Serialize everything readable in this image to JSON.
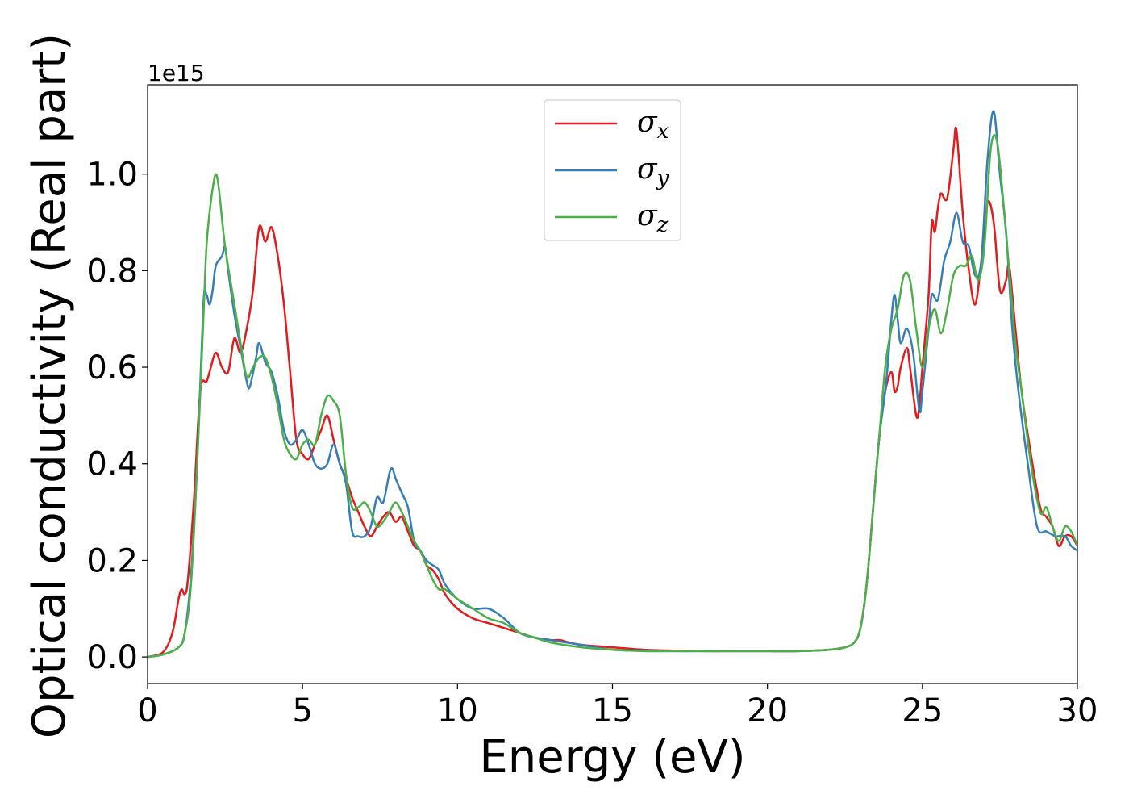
{
  "chart_data": {
    "type": "line",
    "xlabel": "Energy (eV)",
    "ylabel": "Optical conductivity (Real part)",
    "y_offset_text": "1e15",
    "xlim": [
      0,
      30
    ],
    "ylim": [
      -0.055,
      1.185
    ],
    "y_scale_note": "values in units of 1e15",
    "x_ticks": [
      0,
      5,
      10,
      15,
      20,
      25,
      30
    ],
    "x_tick_labels": [
      "0",
      "5",
      "10",
      "15",
      "20",
      "25",
      "30"
    ],
    "y_ticks": [
      0.0,
      0.2,
      0.4,
      0.6,
      0.8,
      1.0
    ],
    "y_tick_labels": [
      "0.0",
      "0.2",
      "0.4",
      "0.6",
      "0.8",
      "1.0"
    ],
    "grid": false,
    "legend_position": "top-center",
    "series": [
      {
        "name": "σx",
        "legend_base": "σ",
        "legend_sub": "x",
        "color": "#e41a1c",
        "x": [
          0,
          0.5,
          0.8,
          1.0,
          1.1,
          1.2,
          1.3,
          1.5,
          1.7,
          1.9,
          2.0,
          2.2,
          2.4,
          2.6,
          2.8,
          3.0,
          3.2,
          3.4,
          3.6,
          3.8,
          4.0,
          4.2,
          4.4,
          4.6,
          4.8,
          5.0,
          5.2,
          5.4,
          5.6,
          5.8,
          6.0,
          6.2,
          6.4,
          6.6,
          6.8,
          7.0,
          7.2,
          7.4,
          7.6,
          7.8,
          8.0,
          8.2,
          8.4,
          8.6,
          8.8,
          9.0,
          9.2,
          9.4,
          9.6,
          10.0,
          10.5,
          11.0,
          11.5,
          12.0,
          12.5,
          13.0,
          13.3,
          13.6,
          14.0,
          15.0,
          16.0,
          17.0,
          18.0,
          19.0,
          20.0,
          21.0,
          22.0,
          22.5,
          22.8,
          23.0,
          23.2,
          23.4,
          23.6,
          23.8,
          24.0,
          24.1,
          24.2,
          24.3,
          24.5,
          24.6,
          24.8,
          24.9,
          25.0,
          25.2,
          25.3,
          25.4,
          25.5,
          25.6,
          25.8,
          26.0,
          26.1,
          26.3,
          26.5,
          26.7,
          26.9,
          27.1,
          27.3,
          27.5,
          27.7,
          27.8,
          28.0,
          28.2,
          28.5,
          28.8,
          29.0,
          29.2,
          29.4,
          29.6,
          29.8,
          30.0
        ],
        "values": [
          0.0,
          0.01,
          0.05,
          0.12,
          0.14,
          0.13,
          0.16,
          0.33,
          0.55,
          0.57,
          0.59,
          0.63,
          0.6,
          0.59,
          0.66,
          0.63,
          0.68,
          0.76,
          0.89,
          0.86,
          0.89,
          0.83,
          0.73,
          0.59,
          0.45,
          0.42,
          0.41,
          0.44,
          0.47,
          0.5,
          0.45,
          0.4,
          0.37,
          0.33,
          0.3,
          0.27,
          0.25,
          0.27,
          0.29,
          0.3,
          0.28,
          0.29,
          0.26,
          0.23,
          0.22,
          0.19,
          0.18,
          0.16,
          0.13,
          0.1,
          0.08,
          0.07,
          0.06,
          0.05,
          0.04,
          0.035,
          0.035,
          0.03,
          0.025,
          0.02,
          0.015,
          0.013,
          0.012,
          0.012,
          0.012,
          0.012,
          0.015,
          0.02,
          0.03,
          0.06,
          0.15,
          0.3,
          0.45,
          0.55,
          0.59,
          0.55,
          0.56,
          0.6,
          0.64,
          0.6,
          0.5,
          0.52,
          0.6,
          0.75,
          0.9,
          0.88,
          0.93,
          0.96,
          0.95,
          1.05,
          1.09,
          0.92,
          0.8,
          0.73,
          0.82,
          0.94,
          0.9,
          0.76,
          0.78,
          0.81,
          0.68,
          0.55,
          0.42,
          0.31,
          0.29,
          0.27,
          0.23,
          0.25,
          0.25,
          0.23
        ]
      },
      {
        "name": "σy",
        "legend_base": "σ",
        "legend_sub": "y",
        "color": "#377eb8",
        "x": [
          0,
          0.5,
          1.0,
          1.2,
          1.4,
          1.6,
          1.8,
          1.9,
          2.0,
          2.1,
          2.2,
          2.4,
          2.5,
          2.6,
          2.8,
          3.0,
          3.2,
          3.3,
          3.5,
          3.6,
          3.8,
          4.0,
          4.2,
          4.4,
          4.6,
          4.8,
          5.0,
          5.2,
          5.4,
          5.6,
          5.8,
          6.0,
          6.2,
          6.4,
          6.6,
          6.8,
          7.0,
          7.2,
          7.4,
          7.6,
          7.8,
          7.9,
          8.0,
          8.2,
          8.4,
          8.6,
          8.8,
          9.0,
          9.2,
          9.4,
          9.6,
          10.0,
          10.5,
          11.0,
          11.5,
          12.0,
          12.5,
          13.0,
          14.0,
          15.0,
          16.0,
          17.0,
          18.0,
          19.0,
          20.0,
          21.0,
          22.0,
          22.5,
          22.8,
          23.0,
          23.2,
          23.4,
          23.6,
          23.8,
          23.9,
          24.0,
          24.1,
          24.2,
          24.3,
          24.5,
          24.7,
          24.9,
          25.0,
          25.2,
          25.3,
          25.5,
          25.7,
          25.9,
          26.1,
          26.3,
          26.5,
          26.7,
          26.9,
          27.1,
          27.3,
          27.5,
          27.7,
          27.9,
          28.1,
          28.4,
          28.7,
          29.0,
          29.3,
          29.6,
          29.8,
          30.0
        ],
        "values": [
          0.0,
          0.005,
          0.02,
          0.05,
          0.17,
          0.4,
          0.73,
          0.75,
          0.73,
          0.76,
          0.81,
          0.83,
          0.85,
          0.8,
          0.71,
          0.64,
          0.57,
          0.56,
          0.62,
          0.65,
          0.61,
          0.59,
          0.54,
          0.47,
          0.44,
          0.45,
          0.47,
          0.44,
          0.4,
          0.39,
          0.4,
          0.44,
          0.4,
          0.36,
          0.26,
          0.25,
          0.25,
          0.27,
          0.33,
          0.32,
          0.38,
          0.39,
          0.37,
          0.34,
          0.31,
          0.24,
          0.22,
          0.2,
          0.19,
          0.18,
          0.15,
          0.12,
          0.1,
          0.1,
          0.08,
          0.05,
          0.04,
          0.035,
          0.025,
          0.015,
          0.013,
          0.012,
          0.012,
          0.012,
          0.012,
          0.012,
          0.015,
          0.02,
          0.03,
          0.06,
          0.15,
          0.3,
          0.45,
          0.55,
          0.62,
          0.7,
          0.75,
          0.7,
          0.65,
          0.68,
          0.63,
          0.51,
          0.55,
          0.68,
          0.75,
          0.74,
          0.82,
          0.86,
          0.92,
          0.86,
          0.85,
          0.79,
          0.82,
          1.03,
          1.13,
          1.0,
          0.88,
          0.68,
          0.55,
          0.4,
          0.27,
          0.26,
          0.25,
          0.25,
          0.23,
          0.22
        ]
      },
      {
        "name": "σz",
        "legend_base": "σ",
        "legend_sub": "z",
        "color": "#4daf4a",
        "x": [
          0,
          0.5,
          1.0,
          1.2,
          1.4,
          1.6,
          1.8,
          1.9,
          2.0,
          2.1,
          2.2,
          2.3,
          2.5,
          2.8,
          3.0,
          3.2,
          3.4,
          3.6,
          3.8,
          4.0,
          4.2,
          4.4,
          4.6,
          4.8,
          5.0,
          5.2,
          5.4,
          5.6,
          5.8,
          6.0,
          6.2,
          6.4,
          6.6,
          6.8,
          7.0,
          7.2,
          7.4,
          7.6,
          7.8,
          8.0,
          8.2,
          8.4,
          8.6,
          8.8,
          9.0,
          9.2,
          9.4,
          9.6,
          10.0,
          10.5,
          11.0,
          11.5,
          12.0,
          12.5,
          13.0,
          14.0,
          15.0,
          16.0,
          17.0,
          18.0,
          19.0,
          20.0,
          21.0,
          22.0,
          22.5,
          22.8,
          23.0,
          23.2,
          23.4,
          23.6,
          23.8,
          24.0,
          24.2,
          24.4,
          24.6,
          24.8,
          25.0,
          25.2,
          25.4,
          25.6,
          25.8,
          26.0,
          26.2,
          26.4,
          26.6,
          26.8,
          27.0,
          27.2,
          27.4,
          27.6,
          27.8,
          28.0,
          28.2,
          28.5,
          28.8,
          29.0,
          29.2,
          29.4,
          29.6,
          29.8,
          30.0
        ],
        "values": [
          0.0,
          0.005,
          0.02,
          0.05,
          0.15,
          0.4,
          0.7,
          0.85,
          0.92,
          0.97,
          1.0,
          0.97,
          0.85,
          0.73,
          0.65,
          0.58,
          0.6,
          0.62,
          0.62,
          0.58,
          0.52,
          0.45,
          0.42,
          0.41,
          0.44,
          0.45,
          0.44,
          0.5,
          0.54,
          0.53,
          0.5,
          0.38,
          0.31,
          0.31,
          0.32,
          0.3,
          0.27,
          0.28,
          0.3,
          0.32,
          0.3,
          0.27,
          0.24,
          0.22,
          0.19,
          0.16,
          0.14,
          0.14,
          0.12,
          0.1,
          0.08,
          0.07,
          0.05,
          0.04,
          0.03,
          0.02,
          0.015,
          0.012,
          0.012,
          0.012,
          0.012,
          0.012,
          0.012,
          0.015,
          0.02,
          0.03,
          0.06,
          0.15,
          0.3,
          0.45,
          0.6,
          0.68,
          0.72,
          0.79,
          0.78,
          0.68,
          0.6,
          0.68,
          0.72,
          0.67,
          0.72,
          0.79,
          0.81,
          0.81,
          0.83,
          0.78,
          0.85,
          1.05,
          1.07,
          0.95,
          0.8,
          0.65,
          0.55,
          0.4,
          0.3,
          0.31,
          0.27,
          0.24,
          0.27,
          0.26,
          0.23
        ]
      }
    ]
  }
}
